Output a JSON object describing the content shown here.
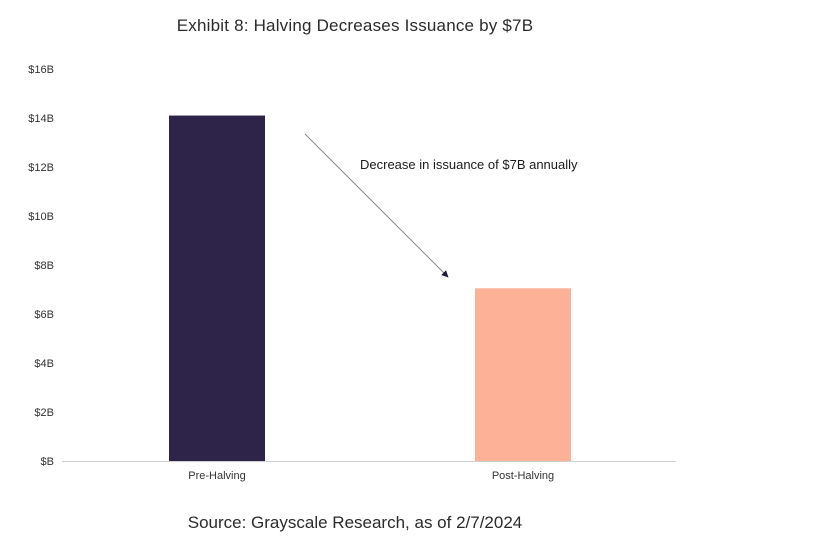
{
  "chart_data": {
    "type": "bar",
    "title": "Exhibit 8: Halving Decreases Issuance by $7B",
    "source": "Source: Grayscale Research, as of 2/7/2024",
    "categories": [
      "Pre-Halving",
      "Post-Halving"
    ],
    "values": [
      14.1,
      7.05
    ],
    "colors": [
      "#2e2449",
      "#fdb197"
    ],
    "ylim": [
      0,
      16
    ],
    "yticks": [
      0,
      2,
      4,
      6,
      8,
      10,
      12,
      14,
      16
    ],
    "ytick_labels": [
      "$B",
      "$2B",
      "$4B",
      "$6B",
      "$8B",
      "$10B",
      "$12B",
      "$14B",
      "$16B"
    ],
    "xlabel": "",
    "ylabel": "",
    "grid": false,
    "annotation": {
      "text": "Decrease in issuance of $7B annually",
      "arrow": "from Pre-Halving bar toward Post-Halving bar"
    },
    "axis_color": "#cfcfcf",
    "arrow_color": "#8a8a8a"
  }
}
